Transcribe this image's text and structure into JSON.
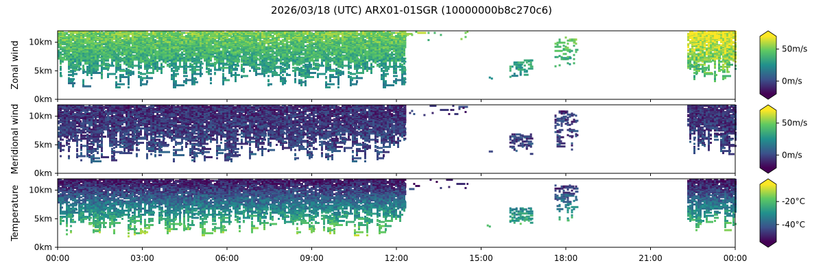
{
  "chart_data": {
    "title": "2026/03/18 (UTC) ARX01-01SGR (10000000b8c270c6)",
    "type": "heatmap",
    "colormap": "viridis",
    "colormap_colors": [
      "#440154",
      "#3b528b",
      "#21908d",
      "#5dc863",
      "#fde725"
    ],
    "x_axis": {
      "ticks": [
        "00:00",
        "03:00",
        "06:00",
        "09:00",
        "12:00",
        "15:00",
        "18:00",
        "21:00",
        "00:00"
      ],
      "range_hours": [
        0,
        24
      ]
    },
    "y_axis": {
      "ticks": [
        "0km",
        "5km",
        "10km"
      ],
      "range_km": [
        0,
        12
      ]
    },
    "panels": [
      {
        "ylabel": "Zonal wind",
        "colorbar_ticks": [
          "50m/s",
          "0m/s"
        ],
        "colorbar_tick_values": [
          50,
          0
        ],
        "color_range": [
          -20,
          70
        ]
      },
      {
        "ylabel": "Meridional wind",
        "colorbar_ticks": [
          "50m/s",
          "0m/s"
        ],
        "colorbar_tick_values": [
          50,
          0
        ],
        "color_range": [
          -20,
          70
        ]
      },
      {
        "ylabel": "Temperature",
        "colorbar_ticks": [
          "-20°C",
          "-40°C"
        ],
        "colorbar_tick_values": [
          -20,
          -40
        ],
        "color_range": [
          -55,
          -5
        ]
      }
    ],
    "observation_sessions": [
      {
        "start_h": 0.0,
        "end_h": 12.3,
        "density": 0.8,
        "top_km": 12,
        "bottom_km": 2
      },
      {
        "start_h": 12.3,
        "end_h": 14.5,
        "density": 0.05,
        "top_km": 12,
        "bottom_km": 10
      },
      {
        "start_h": 15.2,
        "end_h": 15.4,
        "density": 0.3,
        "top_km": 4,
        "bottom_km": 3.5
      },
      {
        "start_h": 16.0,
        "end_h": 16.8,
        "density": 0.35,
        "top_km": 7,
        "bottom_km": 3.5
      },
      {
        "start_h": 17.6,
        "end_h": 18.4,
        "density": 0.25,
        "top_km": 11,
        "bottom_km": 4
      },
      {
        "start_h": 22.3,
        "end_h": 24.0,
        "density": 0.8,
        "top_km": 12,
        "bottom_km": 3
      }
    ]
  }
}
